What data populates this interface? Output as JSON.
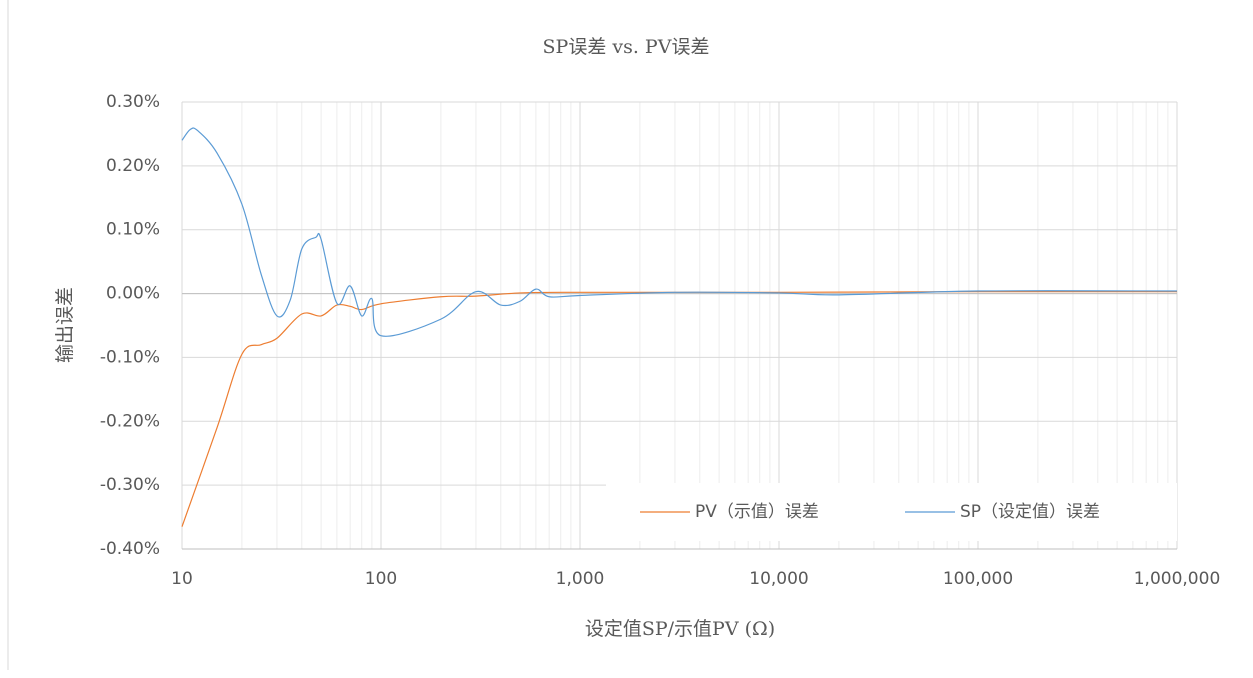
{
  "chart_data": {
    "type": "line",
    "title": "SP误差 vs. PV误差",
    "x_label": "设定值SP/示值PV (Ω)",
    "y_label": "输出误差",
    "xscale": "log",
    "grid": true,
    "legend": "lower right",
    "xlim": [
      10,
      1000000
    ],
    "xticks": [
      10,
      100,
      {
        "value": 1000,
        "label": "1,000"
      },
      {
        "value": 10000,
        "label": "10,000"
      },
      {
        "value": 100000,
        "label": "100,000"
      },
      {
        "value": 1000000,
        "label": "1,000,000"
      }
    ],
    "ylim": [
      -0.4,
      0.3
    ],
    "yticks": [
      {
        "value": -0.4,
        "label": "-0.40%"
      },
      {
        "value": -0.3,
        "label": "-0.30%"
      },
      {
        "value": -0.2,
        "label": "-0.20%"
      },
      {
        "value": -0.1,
        "label": "-0.10%"
      },
      {
        "value": 0,
        "label": "0.00%"
      },
      {
        "value": 0.1,
        "label": "0.10%"
      },
      {
        "value": 0.2,
        "label": "0.20%"
      },
      {
        "value": 0.3,
        "label": "0.30%"
      }
    ],
    "series": [
      {
        "name": "PV（示值）误差",
        "color": "#ed7d31",
        "x": [
          10,
          15,
          20,
          25,
          30,
          40,
          50,
          60,
          70,
          80,
          100,
          200,
          300,
          500,
          1000,
          10000,
          100000,
          1000000
        ],
        "values": [
          -0.365,
          -0.21,
          -0.095,
          -0.08,
          -0.07,
          -0.032,
          -0.035,
          -0.018,
          -0.02,
          -0.025,
          -0.016,
          -0.005,
          -0.004,
          0.001,
          0.002,
          0.002,
          0.003,
          0.003
        ]
      },
      {
        "name": "SP（设定值）误差",
        "color": "#5b9bd5",
        "x": [
          10,
          11,
          12,
          15,
          20,
          25,
          30,
          35,
          40,
          47,
          50,
          60,
          70,
          80,
          90,
          100,
          200,
          300,
          400,
          500,
          600,
          700,
          1000,
          3000,
          10000,
          20000,
          100000,
          1000000
        ],
        "values": [
          0.24,
          0.257,
          0.255,
          0.22,
          0.14,
          0.03,
          -0.035,
          -0.01,
          0.07,
          0.088,
          0.085,
          -0.015,
          0.012,
          -0.035,
          -0.008,
          -0.066,
          -0.04,
          0.003,
          -0.018,
          -0.012,
          0.007,
          -0.005,
          -0.003,
          0.002,
          0.001,
          -0.002,
          0.004,
          0.004
        ]
      }
    ]
  }
}
